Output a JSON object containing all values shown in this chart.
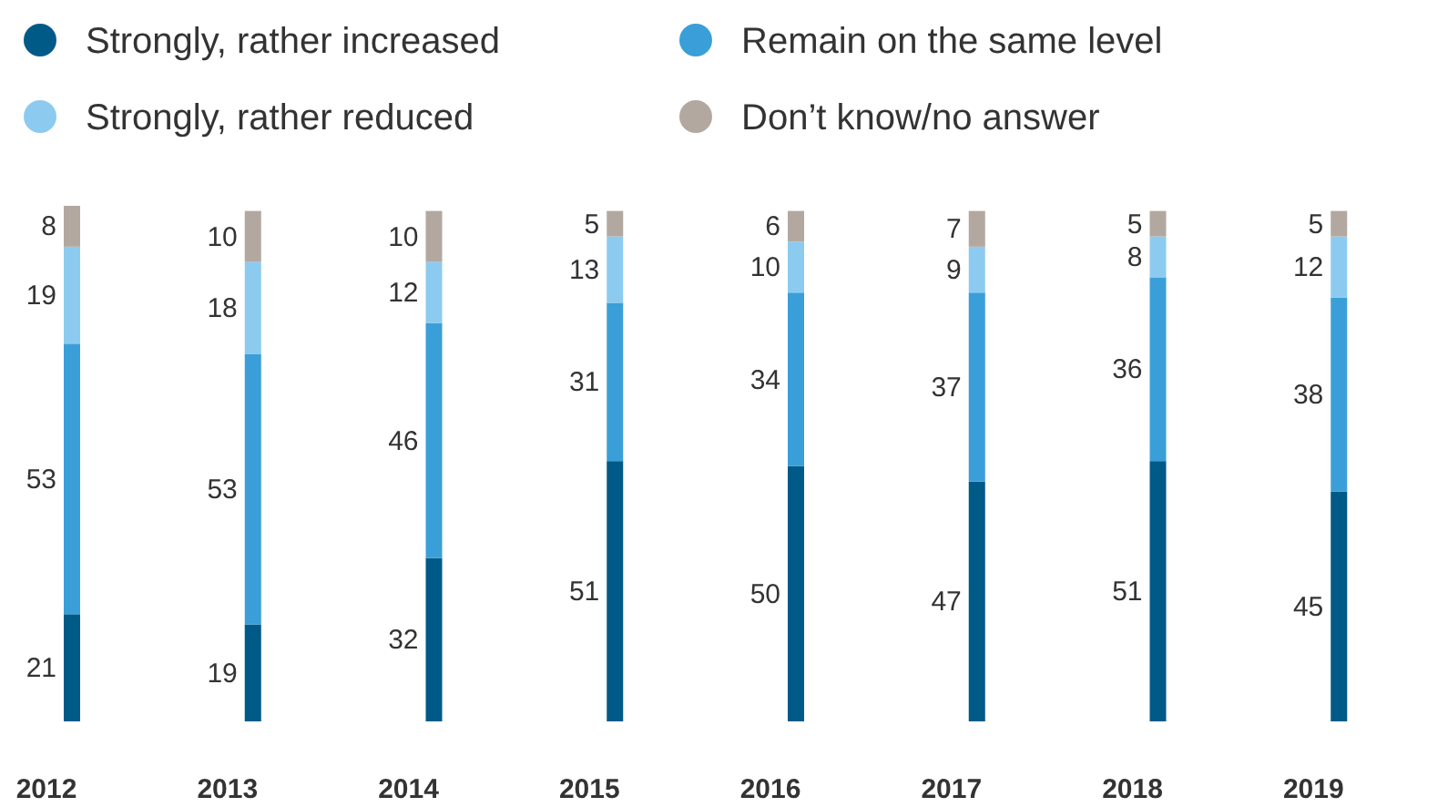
{
  "chart_data": {
    "type": "bar",
    "stacked": true,
    "data_labels": true,
    "legend": "top",
    "categories": [
      "2012",
      "2013",
      "2014",
      "2015",
      "2016",
      "2017",
      "2018",
      "2019"
    ],
    "series": [
      {
        "name": "Strongly, rather increased",
        "color": "#005a87",
        "values": [
          21,
          19,
          32,
          51,
          50,
          47,
          51,
          45
        ]
      },
      {
        "name": "Remain on the same level",
        "color": "#3a9fd8",
        "values": [
          53,
          53,
          46,
          31,
          34,
          37,
          36,
          38
        ]
      },
      {
        "name": "Strongly, rather reduced",
        "color": "#8ccbef",
        "values": [
          19,
          18,
          12,
          13,
          10,
          9,
          8,
          12
        ]
      },
      {
        "name": "Don’t know/no answer",
        "color": "#b3a8a0",
        "values": [
          8,
          10,
          10,
          5,
          6,
          7,
          5,
          5
        ]
      }
    ]
  }
}
